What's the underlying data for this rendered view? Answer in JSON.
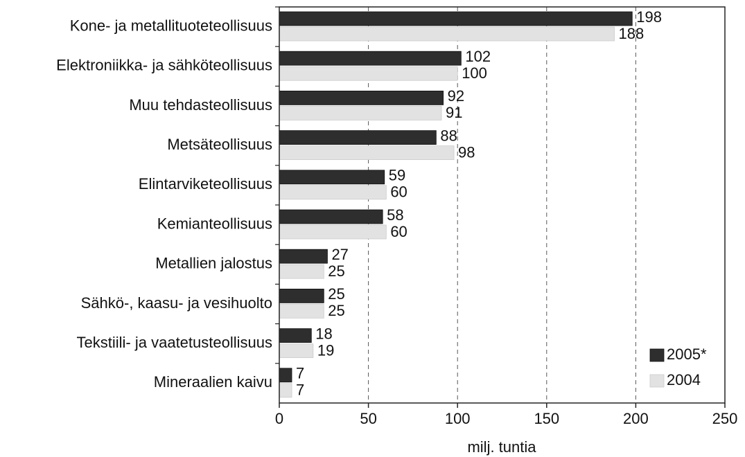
{
  "chart_data": {
    "type": "bar",
    "orientation": "horizontal",
    "categories": [
      "Kone- ja metallituoteteollisuus",
      "Elektroniikka- ja sähköteollisuus",
      "Muu tehdasteollisuus",
      "Metsäteollisuus",
      "Elintarviketeollisuus",
      "Kemianteollisuus",
      "Metallien jalostus",
      "Sähkö-, kaasu- ja vesihuolto",
      "Tekstiili- ja vaatetusteollisuus",
      "Mineraalien kaivu"
    ],
    "series": [
      {
        "name": "2005*",
        "color": "#2e2e2e",
        "values": [
          198,
          102,
          92,
          88,
          59,
          58,
          27,
          25,
          18,
          7
        ]
      },
      {
        "name": "2004",
        "color": "#e2e2e2",
        "values": [
          188,
          100,
          91,
          98,
          60,
          60,
          25,
          25,
          19,
          7
        ]
      }
    ],
    "xlim": [
      0,
      250
    ],
    "xticks": [
      0,
      50,
      100,
      150,
      200,
      250
    ],
    "xlabel": "milj. tuntia",
    "grid": true,
    "legend": "lower right"
  }
}
